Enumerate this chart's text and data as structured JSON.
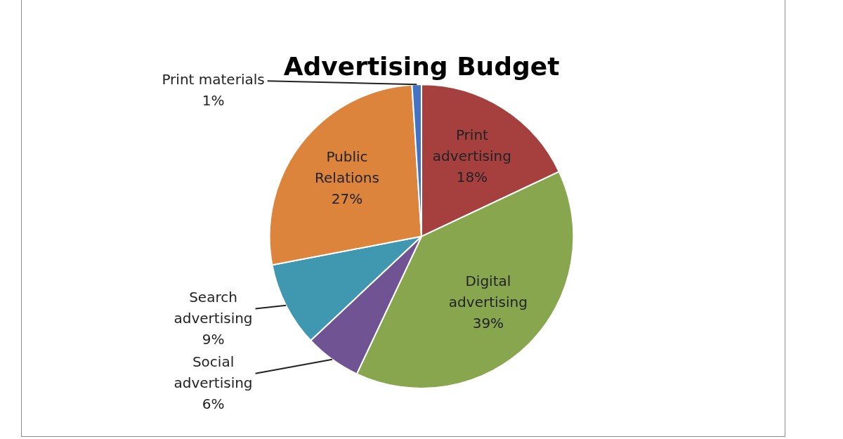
{
  "chart_data": {
    "type": "pie",
    "title": "Advertising Budget",
    "categories": [
      "Print advertising",
      "Digital advertising",
      "Social advertising",
      "Search advertising",
      "Public Relations",
      "Print materials"
    ],
    "values": [
      18,
      39,
      6,
      9,
      27,
      1
    ],
    "colors": [
      "#a5403f",
      "#88a64d",
      "#6f5392",
      "#3f97b0",
      "#dc843b",
      "#4473c3"
    ],
    "value_labels": [
      "18%",
      "39%",
      "6%",
      "9%",
      "27%",
      "1%"
    ],
    "legend": false
  }
}
